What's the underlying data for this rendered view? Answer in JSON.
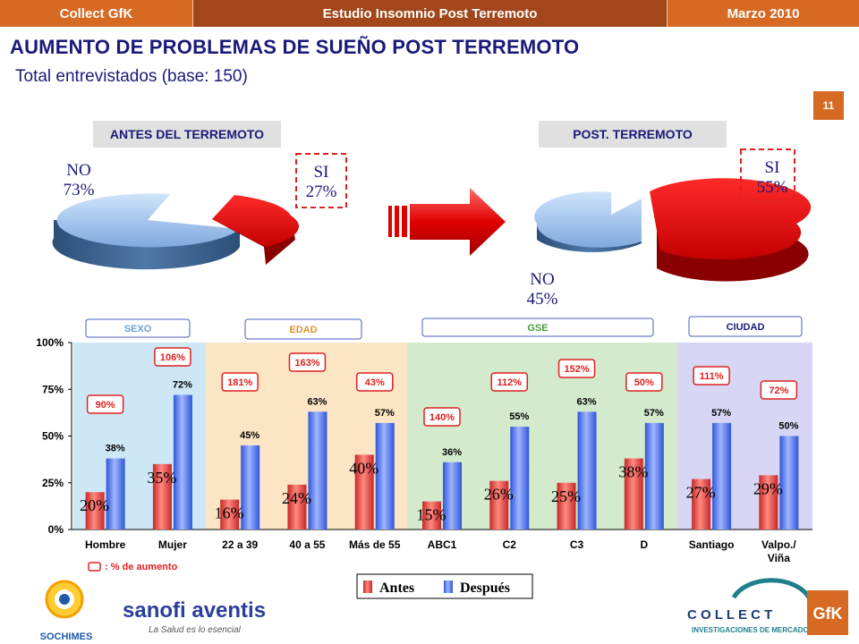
{
  "header": {
    "left": "Collect GfK",
    "center": "Estudio Insomnio Post Terremoto",
    "right": "Marzo 2010"
  },
  "title": "AUMENTO DE PROBLEMAS DE SUEÑO POST TERREMOTO",
  "subtitle": "Total entrevistados (base: 150)",
  "page_number": "11",
  "pie_before": {
    "heading": "ANTES DEL  TERREMOTO",
    "no_label": "NO",
    "no_value": "73%",
    "si_label": "SI",
    "si_value": "27%",
    "no_pct": 73,
    "si_pct": 27
  },
  "pie_after": {
    "heading": "POST. TERREMOTO",
    "no_label": "NO",
    "no_value": "45%",
    "si_label": "SI",
    "si_value": "55%",
    "no_pct": 45,
    "si_pct": 55
  },
  "group_labels": [
    "SEXO",
    "EDAD",
    "GSE",
    "CIUDAD"
  ],
  "increase_note": ": % de aumento",
  "colors": {
    "antes": "#e84646",
    "despues": "#5a7ff0",
    "accent": "#d76a23",
    "navy": "#1a1a7a",
    "sexo_bg": "#cde7f7",
    "edad_bg": "#fbe5c4",
    "gse_bg": "#d3eacd",
    "ciudad_bg": "#d7d6f5"
  },
  "logos": {
    "sochimes": "SOCHIMES",
    "sanofi": "sanofi aventis",
    "sanofi_tagline": "La Salud es lo esencial",
    "collect": "C O L L E C T",
    "collect_tagline": "INVESTIGACIONES DE MERCADO",
    "gfk": "GfK"
  },
  "chart_data": {
    "type": "bar",
    "categories": [
      "Hombre",
      "Mujer",
      "22 a 39",
      "40 a 55",
      "Más de 55",
      "ABC1",
      "C2",
      "C3",
      "D",
      "Santiago",
      "Valpo./ Viña"
    ],
    "series": [
      {
        "name": "Antes",
        "values": [
          20,
          35,
          16,
          24,
          40,
          15,
          26,
          25,
          38,
          27,
          29
        ]
      },
      {
        "name": "Después",
        "values": [
          38,
          72,
          45,
          63,
          57,
          36,
          55,
          63,
          57,
          57,
          50
        ]
      }
    ],
    "increase_labels": [
      "90%",
      "106%",
      "181%",
      "163%",
      "43%",
      "140%",
      "112%",
      "152%",
      "50%",
      "111%",
      "72%"
    ],
    "yticks": [
      "0%",
      "25%",
      "50%",
      "75%",
      "100%"
    ],
    "ylim": [
      0,
      100
    ],
    "legend_position": "bottom-center"
  }
}
